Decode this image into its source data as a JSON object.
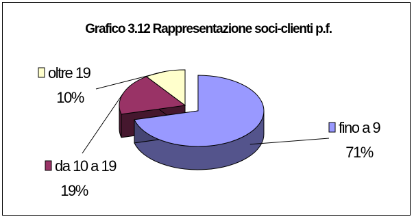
{
  "chart_data": {
    "type": "pie",
    "title": "Grafico 3.12 Rappresentazione soci-clienti p.f.",
    "categories": [
      "fino a 9",
      "da 10 a 19",
      "oltre 19"
    ],
    "values": [
      71,
      19,
      10
    ],
    "value_labels": [
      "71%",
      "19%",
      "10%"
    ],
    "colors": {
      "fino a 9": "#9999ff",
      "da 10 a 19": "#993366",
      "oltre 19": "#ffffcc"
    },
    "legend": "labels beside slices",
    "exploded": "fino a 9",
    "style": "3d"
  }
}
